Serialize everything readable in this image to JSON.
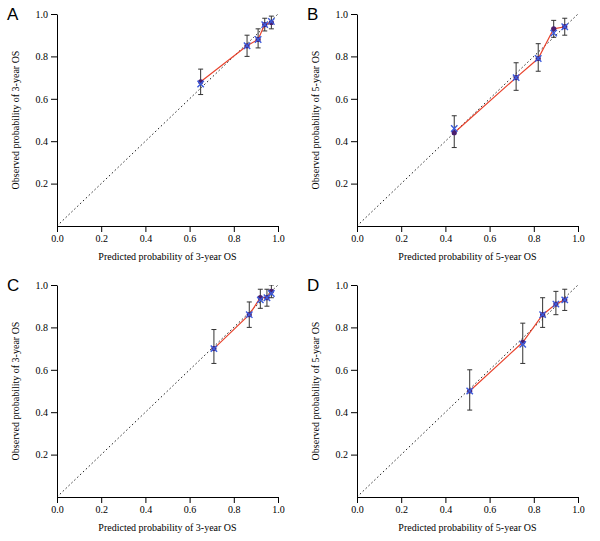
{
  "chart_data": [
    {
      "type": "line",
      "title": "A",
      "x_label": "Predicted probability of 3-year OS",
      "y_label": "Observed probability of 3-year OS",
      "xlim": [
        0,
        1
      ],
      "ylim": [
        0,
        1
      ],
      "xticks": [
        {
          "value": 0,
          "label": "0.0"
        },
        0.2,
        0.4,
        0.6,
        0.8,
        {
          "value": 1,
          "label": "1.0"
        }
      ],
      "yticks": [
        0.2,
        0.4,
        0.6,
        0.8,
        {
          "value": 1,
          "label": "1.0"
        }
      ],
      "grid": false,
      "series": [
        {
          "type": "line",
          "line_style": "dotted",
          "color": "#000000",
          "x": [
            0,
            1
          ],
          "values": [
            0,
            1
          ]
        },
        {
          "type": "line",
          "line_style": "solid",
          "marker": "circle",
          "color": "#e8432d",
          "x": [
            0.65,
            0.86,
            0.91,
            0.94,
            0.97
          ],
          "values": [
            0.68,
            0.85,
            0.88,
            0.95,
            0.96
          ],
          "lower": [
            0.62,
            0.8,
            0.84,
            0.92,
            0.93
          ],
          "upper": [
            0.74,
            0.9,
            0.93,
            0.98,
            0.99
          ]
        },
        {
          "type": "scatter",
          "marker": "x",
          "color": "#3b5bdb",
          "x": [
            0.65,
            0.86,
            0.91,
            0.94,
            0.97
          ],
          "values": [
            0.67,
            0.85,
            0.88,
            0.95,
            0.965
          ]
        }
      ]
    },
    {
      "type": "line",
      "title": "B",
      "x_label": "Predicted probability of 5-year OS",
      "y_label": "Observed probability of 5-year OS",
      "xlim": [
        0,
        1
      ],
      "ylim": [
        0,
        1
      ],
      "xticks": [
        {
          "value": 0,
          "label": "0.0"
        },
        0.2,
        0.4,
        0.6,
        0.8,
        {
          "value": 1,
          "label": "1.0"
        }
      ],
      "yticks": [
        0.2,
        0.4,
        0.6,
        0.8,
        {
          "value": 1,
          "label": "1.0"
        }
      ],
      "grid": false,
      "series": [
        {
          "type": "line",
          "line_style": "dotted",
          "color": "#000000",
          "x": [
            0,
            1
          ],
          "values": [
            0,
            1
          ]
        },
        {
          "type": "line",
          "line_style": "solid",
          "marker": "circle",
          "color": "#e8432d",
          "x": [
            0.44,
            0.72,
            0.82,
            0.89,
            0.94
          ],
          "values": [
            0.44,
            0.7,
            0.79,
            0.93,
            0.94
          ],
          "lower": [
            0.37,
            0.64,
            0.73,
            0.89,
            0.9
          ],
          "upper": [
            0.52,
            0.77,
            0.86,
            0.97,
            0.98
          ]
        },
        {
          "type": "scatter",
          "marker": "x",
          "color": "#3b5bdb",
          "x": [
            0.44,
            0.72,
            0.82,
            0.89,
            0.94
          ],
          "values": [
            0.46,
            0.7,
            0.79,
            0.91,
            0.94
          ]
        }
      ]
    },
    {
      "type": "line",
      "title": "C",
      "x_label": "Predicted probability of 3-year OS",
      "y_label": "Observed probability of 3-year OS",
      "xlim": [
        0,
        1
      ],
      "ylim": [
        0,
        1
      ],
      "xticks": [
        {
          "value": 0,
          "label": "0.0"
        },
        0.2,
        0.4,
        0.6,
        0.8,
        {
          "value": 1,
          "label": "1.0"
        }
      ],
      "yticks": [
        0.2,
        0.4,
        0.6,
        0.8,
        {
          "value": 1,
          "label": "1.0"
        }
      ],
      "grid": false,
      "series": [
        {
          "type": "line",
          "line_style": "dotted",
          "color": "#000000",
          "x": [
            0,
            1
          ],
          "values": [
            0,
            1
          ]
        },
        {
          "type": "line",
          "line_style": "solid",
          "marker": "circle",
          "color": "#e8432d",
          "x": [
            0.71,
            0.87,
            0.92,
            0.95,
            0.97
          ],
          "values": [
            0.7,
            0.86,
            0.94,
            0.94,
            0.97
          ],
          "lower": [
            0.63,
            0.8,
            0.89,
            0.9,
            0.94
          ],
          "upper": [
            0.79,
            0.92,
            0.98,
            0.98,
            1
          ]
        },
        {
          "type": "scatter",
          "marker": "x",
          "color": "#3b5bdb",
          "x": [
            0.71,
            0.87,
            0.92,
            0.95,
            0.97
          ],
          "values": [
            0.7,
            0.86,
            0.93,
            0.94,
            0.96
          ]
        }
      ]
    },
    {
      "type": "line",
      "title": "D",
      "x_label": "Predicted probability of 5-year OS",
      "y_label": "Observed probability of 5-year OS",
      "xlim": [
        0,
        1
      ],
      "ylim": [
        0,
        1
      ],
      "xticks": [
        {
          "value": 0,
          "label": "0.0"
        },
        0.2,
        0.4,
        0.6,
        0.8,
        {
          "value": 1,
          "label": "1.0"
        }
      ],
      "yticks": [
        0.2,
        0.4,
        0.6,
        0.8,
        {
          "value": 1,
          "label": "1.0"
        }
      ],
      "grid": false,
      "series": [
        {
          "type": "line",
          "line_style": "dotted",
          "color": "#000000",
          "x": [
            0,
            1
          ],
          "values": [
            0,
            1
          ]
        },
        {
          "type": "line",
          "line_style": "solid",
          "marker": "circle",
          "color": "#e8432d",
          "x": [
            0.51,
            0.75,
            0.84,
            0.9,
            0.94
          ],
          "values": [
            0.5,
            0.73,
            0.86,
            0.91,
            0.93
          ],
          "lower": [
            0.41,
            0.63,
            0.8,
            0.86,
            0.88
          ],
          "upper": [
            0.6,
            0.82,
            0.94,
            0.97,
            0.98
          ]
        },
        {
          "type": "scatter",
          "marker": "x",
          "color": "#3b5bdb",
          "x": [
            0.51,
            0.75,
            0.84,
            0.9,
            0.94
          ],
          "values": [
            0.5,
            0.72,
            0.86,
            0.91,
            0.93
          ]
        }
      ]
    }
  ]
}
